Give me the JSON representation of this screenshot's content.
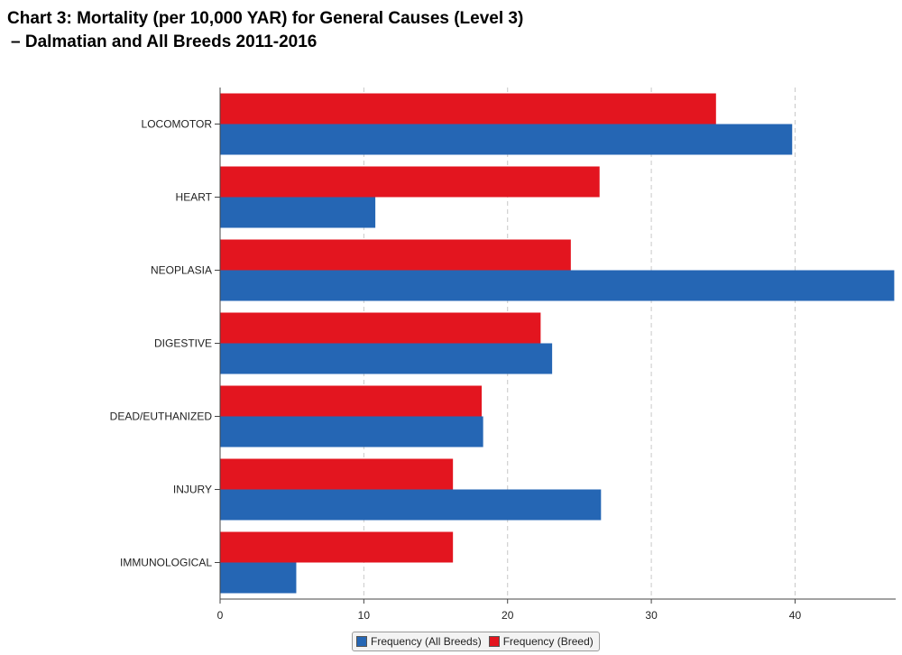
{
  "chart_data": {
    "type": "bar",
    "orientation": "horizontal",
    "title": "Chart 3: Mortality (per 10,000 YAR) for General Causes (Level 3)",
    "subtitle": "–  Dalmatian and All Breeds 2011-2016",
    "categories": [
      "LOCOMOTOR",
      "HEART",
      "NEOPLASIA",
      "DIGESTIVE",
      "DEAD/EUTHANIZED",
      "INJURY",
      "IMMUNOLOGICAL"
    ],
    "series": [
      {
        "name": "Frequency (Breed)",
        "color": "#e3151f",
        "values": [
          34.5,
          26.4,
          24.4,
          22.3,
          18.2,
          16.2,
          16.2
        ]
      },
      {
        "name": "Frequency (All Breeds)",
        "color": "#2566b4",
        "values": [
          39.8,
          10.8,
          46.9,
          23.1,
          18.3,
          26.5,
          5.3
        ]
      }
    ],
    "xlim": [
      0,
      47
    ],
    "xticks": [
      0,
      10,
      20,
      30,
      40
    ],
    "grid": "vertical dashed",
    "legend_position": "bottom-center",
    "xlabel": "",
    "ylabel": ""
  },
  "legend": {
    "items": [
      {
        "label": "Frequency (All Breeds)",
        "color": "#2566b4"
      },
      {
        "label": "Frequency (Breed)",
        "color": "#e3151f"
      }
    ]
  }
}
